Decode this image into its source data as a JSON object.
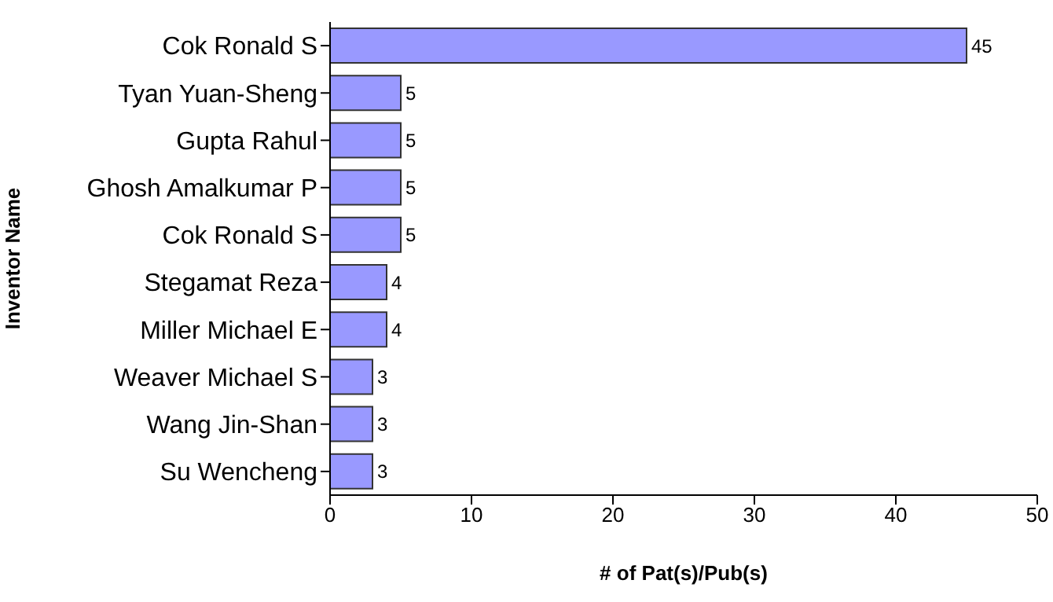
{
  "chart_data": {
    "type": "bar",
    "orientation": "horizontal",
    "xlabel": "# of Pat(s)/Pub(s)",
    "ylabel": "Inventor Name",
    "categories": [
      "Cok Ronald S",
      "Tyan Yuan-Sheng",
      "Gupta Rahul",
      "Ghosh Amalkumar P",
      "Cok Ronald S",
      "Stegamat Reza",
      "Miller Michael E",
      "Weaver Michael S",
      "Wang Jin-Shan",
      "Su Wencheng"
    ],
    "values": [
      45,
      5,
      5,
      5,
      5,
      4,
      4,
      3,
      3,
      3
    ],
    "color": "#9999ff",
    "xlim": [
      0,
      50
    ],
    "xticks": [
      0,
      10,
      20,
      30,
      40,
      50
    ],
    "data_labels": true,
    "grid": false,
    "legend": false
  }
}
